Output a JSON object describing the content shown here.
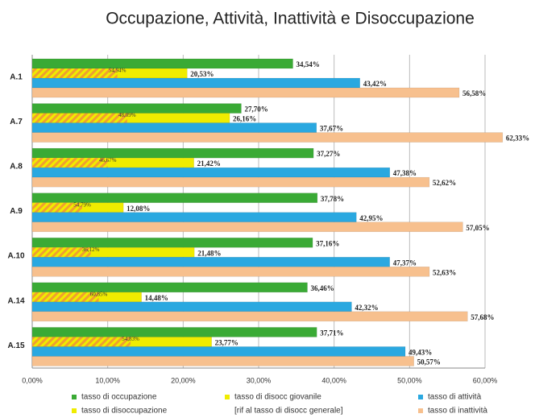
{
  "chart_data": {
    "type": "bar",
    "orientation": "horizontal",
    "title": "Occupazione, Attività, Inattività e Disoccupazione",
    "categories": [
      "A.1",
      "A.7",
      "A.8",
      "A.9",
      "A.10",
      "A.14",
      "A.15"
    ],
    "series": [
      {
        "name": "tasso di occupazione",
        "color": "#3aaa35",
        "values": [
          34.54,
          27.7,
          37.27,
          37.78,
          37.16,
          36.46,
          37.71
        ],
        "value_labels": [
          "34,54%",
          "27,70%",
          "37,27%",
          "37,78%",
          "37,16%",
          "36,46%",
          "37,71%"
        ]
      },
      {
        "name": "tasso di disoccupazione",
        "color": "#f0ec00",
        "values": [
          20.53,
          26.16,
          21.42,
          12.08,
          21.48,
          14.48,
          23.77
        ],
        "value_labels": [
          "20,53%",
          "26,16%",
          "21,42%",
          "12,08%",
          "21,48%",
          "14,48%",
          "23,77%"
        ]
      },
      {
        "name": "tasso di disocc giovanile",
        "note": "[rif al tasso di disocc generale]",
        "color": "#f0a030",
        "hatched": true,
        "relative_to": 1,
        "values": [
          54.94,
          48.09,
          46.67,
          54.79,
          36.12,
          60.85,
          54.83
        ],
        "value_labels": [
          "54,94%",
          "48,09%",
          "46,67%",
          "54,79%",
          "36,12%",
          "60,85%",
          "54,83%"
        ]
      },
      {
        "name": "tasso di attività",
        "color": "#2aa8e0",
        "values": [
          43.42,
          37.67,
          47.38,
          42.95,
          47.37,
          42.32,
          49.43
        ],
        "value_labels": [
          "43,42%",
          "37,67%",
          "47,38%",
          "42,95%",
          "47,37%",
          "42,32%",
          "49,43%"
        ]
      },
      {
        "name": "tasso di inattività",
        "color": "#f7c08e",
        "values": [
          56.58,
          62.33,
          52.62,
          57.05,
          52.63,
          57.68,
          50.57
        ],
        "value_labels": [
          "56,58%",
          "62,33%",
          "52,62%",
          "57,05%",
          "52,63%",
          "57,68%",
          "50,57%"
        ]
      }
    ],
    "xlim": [
      0,
      60
    ],
    "xticks": [
      {
        "value": 0,
        "label": "0,00%"
      },
      {
        "value": 10,
        "label": "10,00%"
      },
      {
        "value": 20,
        "label": "20,00%"
      },
      {
        "value": 30,
        "label": "30,00%"
      },
      {
        "value": 40,
        "label": "40,00%"
      },
      {
        "value": 50,
        "label": "50,00%"
      },
      {
        "value": 60,
        "label": "60,00%"
      }
    ],
    "grid": true
  }
}
